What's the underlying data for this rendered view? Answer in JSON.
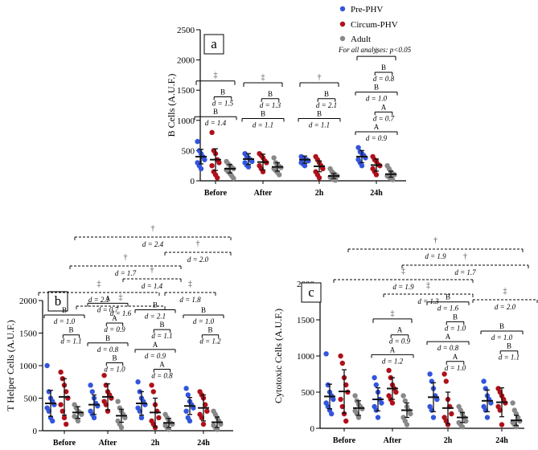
{
  "legend": {
    "items": [
      {
        "label": "Pre-PHV",
        "color": "#3355dd"
      },
      {
        "label": "Circum-PHV",
        "color": "#b0101a"
      },
      {
        "label": "Adult",
        "color": "#888888"
      }
    ],
    "note": "For all analyses: p<0.05"
  },
  "colors": {
    "pre": "#3355dd",
    "circ": "#b0101a",
    "adult": "#888888"
  },
  "chart_data": [
    {
      "panel": "a",
      "type": "scatter",
      "ylabel": "B Cells (A.U.F.)",
      "ylim": [
        0,
        2500
      ],
      "yticks": [
        "0",
        "500",
        "1000",
        "1500",
        "2000",
        "2500"
      ],
      "categories": [
        "Before",
        "After",
        "2h",
        "24h"
      ],
      "series": [
        {
          "name": "Pre-PHV",
          "mean": [
            400,
            360,
            350,
            400
          ],
          "sd": [
            120,
            90,
            60,
            100
          ],
          "points": [
            [
              650,
              500,
              450,
              400,
              350,
              300,
              250,
              200
            ],
            [
              450,
              400,
              380,
              350,
              320,
              300,
              260,
              230
            ],
            [
              400,
              380,
              360,
              350,
              330,
              300,
              280,
              250
            ],
            [
              550,
              480,
              450,
              420,
              380,
              350,
              300,
              250
            ]
          ]
        },
        {
          "name": "Circum-PHV",
          "mean": [
            350,
            310,
            240,
            260
          ],
          "sd": [
            180,
            130,
            90,
            100
          ],
          "points": [
            [
              800,
              500,
              450,
              350,
              300,
              250,
              150,
              100,
              50
            ],
            [
              450,
              420,
              380,
              330,
              300,
              250,
              200,
              150
            ],
            [
              400,
              350,
              300,
              250,
              200,
              150,
              100,
              50
            ],
            [
              400,
              350,
              320,
              270,
              250,
              200,
              150,
              100
            ]
          ]
        },
        {
          "name": "Adult",
          "mean": [
            200,
            230,
            80,
            110
          ],
          "sd": [
            70,
            70,
            40,
            50
          ],
          "points": [
            [
              320,
              280,
              250,
              220,
              200,
              180,
              150,
              120,
              80,
              40
            ],
            [
              380,
              300,
              270,
              240,
              220,
              200,
              170,
              140,
              100
            ],
            [
              200,
              150,
              120,
              100,
              80,
              60,
              40,
              20,
              10
            ],
            [
              250,
              200,
              150,
              120,
              100,
              80,
              60,
              40,
              20
            ]
          ]
        }
      ],
      "annotations": [
        {
          "group": 0,
          "label": "‡",
          "type": "sym"
        },
        {
          "group": 0,
          "label": "B",
          "d": "d = 1.5"
        },
        {
          "group": 0,
          "label": "B",
          "d": "d = 1.4"
        },
        {
          "group": 1,
          "label": "‡",
          "type": "sym"
        },
        {
          "group": 1,
          "label": "B",
          "d": "d = 1.3"
        },
        {
          "group": 1,
          "label": "B",
          "d": "d = 1.1"
        },
        {
          "group": 2,
          "label": "†",
          "type": "sym"
        },
        {
          "group": 2,
          "label": "B",
          "d": "d = 2.1"
        },
        {
          "group": 2,
          "label": "B",
          "d": "d = 1.1"
        },
        {
          "group": 3,
          "label": "‡",
          "type": "sym"
        },
        {
          "group": 3,
          "label": "B",
          "d": "d = 0.8"
        },
        {
          "group": 3,
          "label": "B",
          "d": "d = 1.0"
        },
        {
          "group": 3,
          "label": "A",
          "d": "d = 0.7"
        },
        {
          "group": 3,
          "label": "A",
          "d": "d = 0.9"
        }
      ]
    },
    {
      "panel": "b",
      "type": "scatter",
      "ylabel": "T Helper Cells (A.U.F.)",
      "ylim": [
        0,
        2000
      ],
      "yticks": [
        "0",
        "500",
        "1000",
        "1500",
        "2000"
      ],
      "categories": [
        "Before",
        "After",
        "2h",
        "24h"
      ],
      "series": [
        {
          "name": "Pre-PHV",
          "mean": [
            420,
            400,
            420,
            380
          ],
          "sd": [
            200,
            150,
            180,
            130
          ],
          "points": [
            [
              1000,
              600,
              500,
              450,
              400,
              350,
              300,
              200,
              150
            ],
            [
              700,
              600,
              500,
              420,
              380,
              300,
              250,
              200
            ],
            [
              750,
              600,
              500,
              450,
              400,
              350,
              300,
              200
            ],
            [
              650,
              550,
              450,
              400,
              350,
              300,
              200,
              150
            ]
          ]
        },
        {
          "name": "Circum-PHV",
          "mean": [
            520,
            520,
            280,
            350
          ],
          "sd": [
            280,
            200,
            220,
            200
          ],
          "points": [
            [
              900,
              800,
              700,
              600,
              500,
              400,
              300,
              200,
              100
            ],
            [
              850,
              700,
              600,
              550,
              500,
              450,
              400,
              300
            ],
            [
              700,
              600,
              400,
              300,
              200,
              150,
              100,
              50
            ],
            [
              600,
              550,
              500,
              400,
              300,
              250,
              200,
              100
            ]
          ]
        },
        {
          "name": "Adult",
          "mean": [
            280,
            230,
            120,
            130
          ],
          "sd": [
            90,
            100,
            70,
            80
          ],
          "points": [
            [
              400,
              350,
              300,
              280,
              250,
              220,
              200,
              150
            ],
            [
              450,
              350,
              300,
              250,
              200,
              150,
              100,
              50
            ],
            [
              250,
              200,
              150,
              120,
              100,
              80,
              50,
              20
            ],
            [
              300,
              250,
              200,
              150,
              100,
              80,
              50,
              20
            ]
          ]
        }
      ],
      "annotations": [
        {
          "group": 0,
          "label": "B",
          "d": "d = 1.0"
        },
        {
          "group": 0,
          "label": "B",
          "d": "d = 1.1"
        },
        {
          "group": 1,
          "label": "A",
          "d": "d = 0.7"
        },
        {
          "group": 1,
          "label": "A",
          "d": "d = 0.9"
        },
        {
          "group": 1,
          "label": "B",
          "d": "d = 0.8"
        },
        {
          "group": 1,
          "label": "B",
          "d": "d = 1.0"
        },
        {
          "group": 2,
          "label": "B",
          "d": "d = 2.1"
        },
        {
          "group": 2,
          "label": "B",
          "d": "d = 1.1"
        },
        {
          "group": 2,
          "label": "A",
          "d": "d = 0.9"
        },
        {
          "group": 2,
          "label": "A",
          "d": "d = 0.8"
        },
        {
          "group": 3,
          "label": "B",
          "d": "d = 1.0"
        },
        {
          "group": 3,
          "label": "B",
          "d": "d = 1.2"
        }
      ],
      "dashed": [
        {
          "label": "†",
          "d": "d = 2.4"
        },
        {
          "label": "†",
          "d": "d = 2.0"
        },
        {
          "label": "†",
          "d": "d = 1.7"
        },
        {
          "label": "†",
          "d": "d = 1.4"
        },
        {
          "label": "‡",
          "d": "d = 2.1"
        },
        {
          "label": "‡",
          "d": "d = 1.6"
        },
        {
          "label": "‡",
          "d": "d = 1.8"
        }
      ]
    },
    {
      "panel": "c",
      "type": "scatter",
      "ylabel": "Cytotoxic Cells (A.U.F.)",
      "ylim": [
        0,
        2000
      ],
      "yticks": [
        "0",
        "500",
        "1000",
        "1500",
        "2000"
      ],
      "categories": [
        "Before",
        "After",
        "2h",
        "24h"
      ],
      "series": [
        {
          "name": "Pre-PHV",
          "mean": [
            440,
            400,
            430,
            380
          ],
          "sd": [
            170,
            160,
            200,
            150
          ],
          "points": [
            [
              1030,
              600,
              500,
              450,
              400,
              350,
              300,
              250,
              200
            ],
            [
              700,
              600,
              500,
              400,
              350,
              300,
              250,
              150
            ],
            [
              750,
              650,
              550,
              450,
              400,
              300,
              250,
              150
            ],
            [
              650,
              550,
              450,
              400,
              350,
              300,
              250,
              150
            ]
          ]
        },
        {
          "name": "Circum-PHV",
          "mean": [
            510,
            550,
            280,
            360
          ],
          "sd": [
            300,
            150,
            220,
            200
          ],
          "points": [
            [
              1000,
              900,
              700,
              600,
              500,
              400,
              300,
              200,
              100
            ],
            [
              800,
              700,
              600,
              550,
              500,
              450,
              400,
              350
            ],
            [
              750,
              650,
              400,
              300,
              200,
              150,
              100,
              50
            ],
            [
              550,
              500,
              450,
              400,
              350,
              300,
              250,
              50
            ]
          ]
        },
        {
          "name": "Adult",
          "mean": [
            280,
            250,
            150,
            110
          ],
          "sd": [
            100,
            100,
            70,
            70
          ],
          "points": [
            [
              450,
              380,
              330,
              300,
              270,
              240,
              200,
              150
            ],
            [
              450,
              380,
              300,
              250,
              200,
              150,
              100,
              50
            ],
            [
              300,
              250,
              200,
              150,
              100,
              80,
              50,
              20
            ],
            [
              350,
              250,
              200,
              150,
              100,
              80,
              50,
              20
            ]
          ]
        }
      ],
      "annotations": [
        {
          "group": 1,
          "label": "‡",
          "type": "sym"
        },
        {
          "group": 1,
          "label": "A",
          "d": "d = 0.9"
        },
        {
          "group": 1,
          "label": "A",
          "d": "d = 1.2"
        },
        {
          "group": 2,
          "label": "B",
          "d": "d = 1.6"
        },
        {
          "group": 2,
          "label": "B",
          "d": "d = 1.0"
        },
        {
          "group": 2,
          "label": "A",
          "d": "d = 0.8"
        },
        {
          "group": 2,
          "label": "A",
          "d": "d = 1.0"
        },
        {
          "group": 3,
          "label": "B",
          "d": "d = 1.0"
        },
        {
          "group": 3,
          "label": "B",
          "d": "d = 1.1"
        }
      ],
      "dashed": [
        {
          "label": "†",
          "d": "d = 1.9"
        },
        {
          "label": "†",
          "d": "d = 1.7"
        },
        {
          "label": "‡",
          "d": "d = 1.9"
        },
        {
          "label": "‡",
          "d": "d = 1.3"
        },
        {
          "label": "‡",
          "d": "d = 2.0"
        }
      ]
    }
  ]
}
